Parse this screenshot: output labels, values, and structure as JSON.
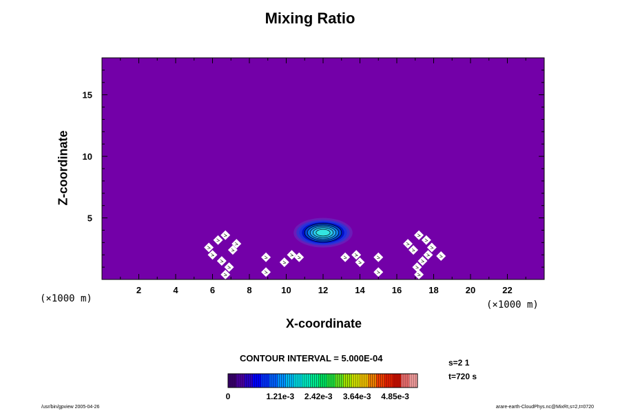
{
  "chart_data": {
    "type": "heatmap",
    "title": "Mixing Ratio",
    "xlabel": "X-coordinate",
    "ylabel": "Z-coordinate",
    "x_unit": "(×1000 m)",
    "y_unit": "(×1000 m)",
    "xlim": [
      0,
      24
    ],
    "ylim": [
      0,
      18
    ],
    "x_ticks": [
      2,
      4,
      6,
      8,
      10,
      12,
      14,
      16,
      18,
      20,
      22
    ],
    "y_ticks": [
      5,
      10,
      15
    ],
    "background_color": "#7300a8",
    "cloud": {
      "center_x": 12,
      "center_z": 3.8,
      "levels": [
        {
          "rx": 1.6,
          "rz": 1.2,
          "color": "#6a1cb8"
        },
        {
          "rx": 1.45,
          "rz": 1.05,
          "color": "#3c30cc"
        },
        {
          "rx": 1.3,
          "rz": 0.95,
          "color": "#1e2ee0"
        },
        {
          "rx": 1.15,
          "rz": 0.85,
          "color": "#0010c8"
        },
        {
          "rx": 1.0,
          "rz": 0.75,
          "color": "#0044d8"
        },
        {
          "rx": 0.85,
          "rz": 0.63,
          "color": "#0d7fe8"
        },
        {
          "rx": 0.7,
          "rz": 0.52,
          "color": "#24a8f0"
        },
        {
          "rx": 0.55,
          "rz": 0.4,
          "color": "#29c8e8"
        },
        {
          "rx": 0.38,
          "rz": 0.27,
          "color": "#33e4e0"
        }
      ]
    },
    "missing_patches": [
      {
        "x": 5.8,
        "z": 2.6
      },
      {
        "x": 6.3,
        "z": 3.2
      },
      {
        "x": 6.7,
        "z": 3.6
      },
      {
        "x": 6.0,
        "z": 2.0
      },
      {
        "x": 6.5,
        "z": 1.5
      },
      {
        "x": 6.9,
        "z": 1.0
      },
      {
        "x": 6.7,
        "z": 0.4
      },
      {
        "x": 7.1,
        "z": 2.4
      },
      {
        "x": 7.3,
        "z": 2.9
      },
      {
        "x": 8.9,
        "z": 1.8
      },
      {
        "x": 8.9,
        "z": 0.6
      },
      {
        "x": 9.9,
        "z": 1.4
      },
      {
        "x": 10.3,
        "z": 2.0
      },
      {
        "x": 10.7,
        "z": 1.8
      },
      {
        "x": 13.2,
        "z": 1.8
      },
      {
        "x": 13.8,
        "z": 2.0
      },
      {
        "x": 14.0,
        "z": 1.4
      },
      {
        "x": 15.0,
        "z": 1.8
      },
      {
        "x": 15.0,
        "z": 0.6
      },
      {
        "x": 16.6,
        "z": 2.9
      },
      {
        "x": 16.9,
        "z": 2.4
      },
      {
        "x": 17.2,
        "z": 3.6
      },
      {
        "x": 17.6,
        "z": 3.2
      },
      {
        "x": 17.9,
        "z": 2.6
      },
      {
        "x": 17.7,
        "z": 2.0
      },
      {
        "x": 17.4,
        "z": 1.5
      },
      {
        "x": 17.1,
        "z": 1.0
      },
      {
        "x": 17.2,
        "z": 0.4
      },
      {
        "x": 18.4,
        "z": 1.9
      }
    ],
    "colorbar": {
      "min": 0,
      "max": 0.006,
      "tick_labels": [
        "0",
        "1.21e-3",
        "2.42e-3",
        "3.64e-3",
        "4.85e-3"
      ],
      "tick_values": [
        0,
        0.00121,
        0.00242,
        0.00364,
        0.00485
      ],
      "colors": [
        "#3a006e",
        "#4a00a0",
        "#2a00c8",
        "#0000ff",
        "#0030ff",
        "#0060ff",
        "#0090ff",
        "#00b8f0",
        "#00d8e0",
        "#00e8c0",
        "#00e890",
        "#00e060",
        "#20e040",
        "#60e020",
        "#a0e000",
        "#d0e000",
        "#f0c000",
        "#f08000",
        "#f04000",
        "#e82000",
        "#d01000",
        "#f07070",
        "#f8a0a0"
      ]
    }
  },
  "labels": {
    "contour_interval": "CONTOUR INTERVAL = 5.000E-04",
    "step": "s=2 1",
    "time": "t=720 s",
    "footer_left": "/usr/bin/gpview 2005-04-26",
    "footer_right": "arare-earth-CloudPhys.nc@MixRt,s=2,t=0720"
  }
}
